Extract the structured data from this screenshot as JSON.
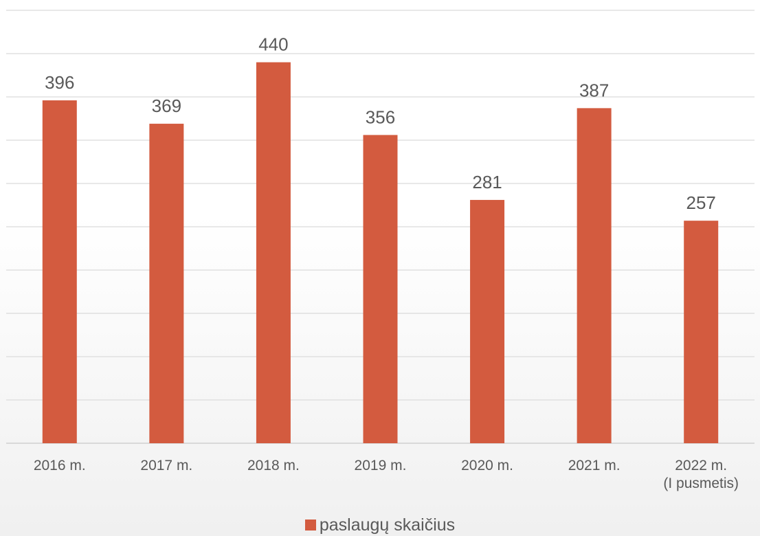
{
  "chart_data": {
    "type": "bar",
    "categories": [
      "2016 m.",
      "2017 m.",
      "2018 m.",
      "2019 m.",
      "2020 m.",
      "2021 m.",
      "2022 m.\n(I pusmetis)"
    ],
    "series": [
      {
        "name": "paslaugų skaičius",
        "color": "#d35b3f",
        "values": [
          396,
          369,
          440,
          356,
          281,
          387,
          257
        ]
      }
    ],
    "ylim": [
      0,
      500
    ],
    "yticks": [
      0,
      50,
      100,
      150,
      200,
      250,
      300,
      350,
      400,
      450,
      500
    ],
    "grid": true,
    "legend": "bottom"
  }
}
